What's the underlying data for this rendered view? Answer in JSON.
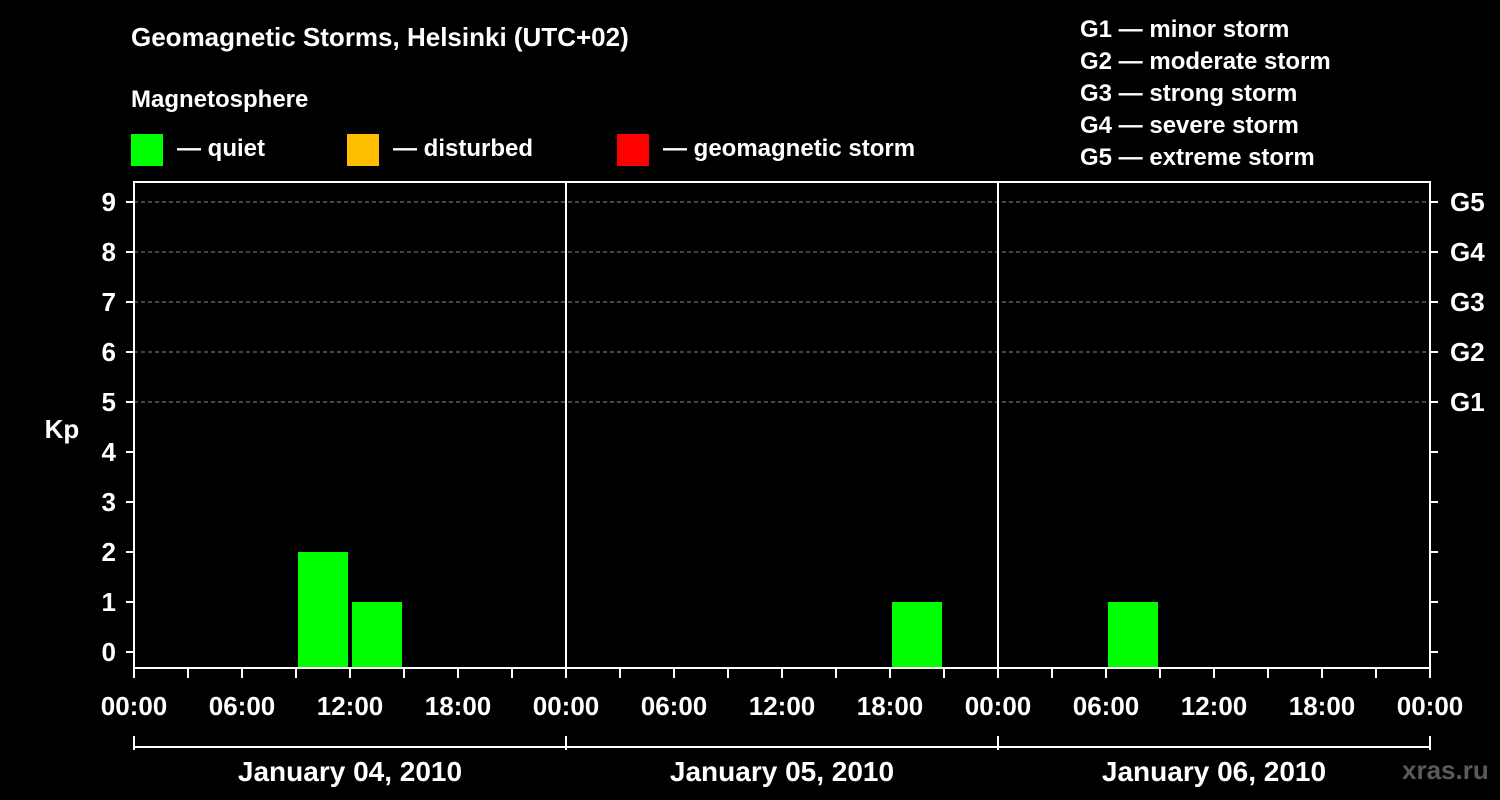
{
  "header": {
    "title": "Geomagnetic Storms, Helsinki (UTC+02)",
    "subtitle": "Magnetosphere"
  },
  "legend": [
    {
      "label": "— quiet",
      "color": "#00ff00"
    },
    {
      "label": "— disturbed",
      "color": "#ffbf00"
    },
    {
      "label": "— geomagnetic storm",
      "color": "#ff0000"
    }
  ],
  "storm_scale": [
    "G1 — minor storm",
    "G2 — moderate storm",
    "G3 — strong storm",
    "G4 — severe storm",
    "G5 — extreme storm"
  ],
  "watermark": "xras.ru",
  "chart_data": {
    "type": "bar",
    "title": "Geomagnetic Storms, Helsinki (UTC+02)",
    "ylabel": "Kp",
    "ylim": [
      0,
      9
    ],
    "yticks": [
      "0",
      "1",
      "2",
      "3",
      "4",
      "5",
      "6",
      "7",
      "8",
      "9"
    ],
    "right_ticks": [
      {
        "kp": 5,
        "label": "G1"
      },
      {
        "kp": 6,
        "label": "G2"
      },
      {
        "kp": 7,
        "label": "G3"
      },
      {
        "kp": 8,
        "label": "G4"
      },
      {
        "kp": 9,
        "label": "G5"
      }
    ],
    "grid": "dashed at Kp 5–9",
    "x_tick_labels": [
      "00:00",
      "06:00",
      "12:00",
      "18:00",
      "00:00",
      "06:00",
      "12:00",
      "18:00",
      "00:00",
      "06:00",
      "12:00",
      "18:00",
      "00:00"
    ],
    "days": [
      "January 04, 2010",
      "January 05, 2010",
      "January 06, 2010"
    ],
    "interval_hours": 3,
    "bars": [
      {
        "day": "January 04, 2010",
        "start": "09:00",
        "kp": 2,
        "status": "quiet"
      },
      {
        "day": "January 04, 2010",
        "start": "12:00",
        "kp": 1,
        "status": "quiet"
      },
      {
        "day": "January 05, 2010",
        "start": "18:00",
        "kp": 1,
        "status": "quiet"
      },
      {
        "day": "January 06, 2010",
        "start": "06:00",
        "kp": 1,
        "status": "quiet"
      }
    ],
    "status_colors": {
      "quiet": "#00ff00",
      "disturbed": "#ffbf00",
      "storm": "#ff0000"
    }
  }
}
